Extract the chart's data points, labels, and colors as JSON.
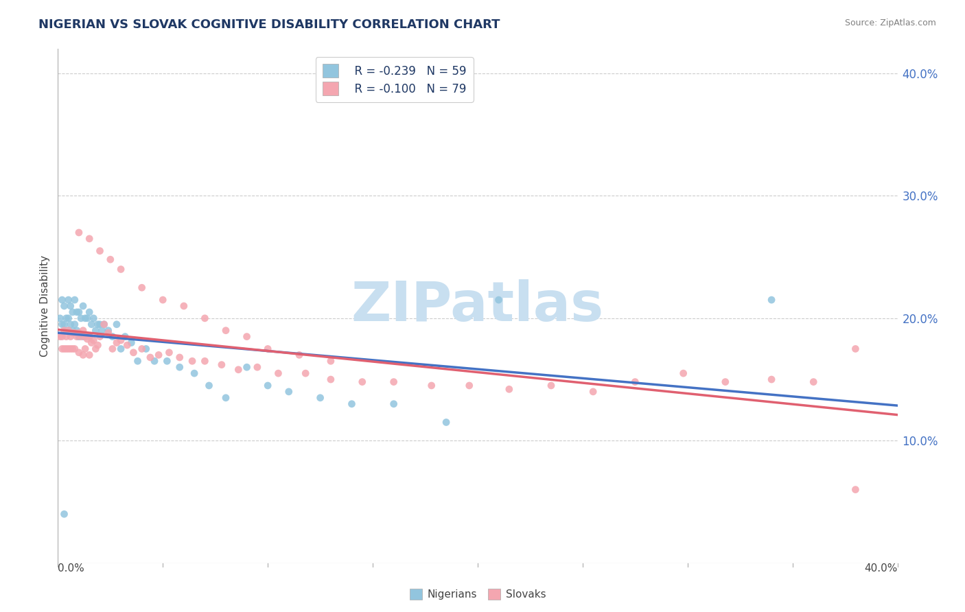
{
  "title": "NIGERIAN VS SLOVAK COGNITIVE DISABILITY CORRELATION CHART",
  "source": "Source: ZipAtlas.com",
  "ylabel": "Cognitive Disability",
  "right_ytick_vals": [
    0.1,
    0.2,
    0.3,
    0.4
  ],
  "xlim": [
    0.0,
    0.4
  ],
  "ylim": [
    0.0,
    0.42
  ],
  "nigerian_color": "#92C5DE",
  "slovak_color": "#F4A6B0",
  "nigerian_line_color": "#4472C4",
  "slovak_line_color": "#E06070",
  "watermark_text": "ZIPatlas",
  "watermark_color": "#C8DFF0",
  "legend_R_nigerian": "R = -0.239",
  "legend_N_nigerian": "N = 59",
  "legend_R_slovak": "R = -0.100",
  "legend_N_slovak": "N = 79",
  "title_color": "#1F3864",
  "source_color": "#808080",
  "axis_label_color": "#444444",
  "ytick_color": "#4472C4",
  "grid_color": "#CCCCCC",
  "legend_text_color": "#1F3864",
  "nigerian_x": [
    0.001,
    0.002,
    0.002,
    0.003,
    0.003,
    0.004,
    0.004,
    0.005,
    0.005,
    0.005,
    0.006,
    0.006,
    0.007,
    0.007,
    0.008,
    0.008,
    0.009,
    0.009,
    0.01,
    0.01,
    0.011,
    0.012,
    0.012,
    0.013,
    0.013,
    0.014,
    0.015,
    0.015,
    0.016,
    0.017,
    0.018,
    0.019,
    0.02,
    0.021,
    0.022,
    0.024,
    0.026,
    0.028,
    0.03,
    0.032,
    0.035,
    0.038,
    0.042,
    0.046,
    0.052,
    0.058,
    0.065,
    0.072,
    0.08,
    0.09,
    0.1,
    0.11,
    0.125,
    0.14,
    0.16,
    0.185,
    0.21,
    0.34,
    0.003
  ],
  "nigerian_y": [
    0.2,
    0.215,
    0.195,
    0.21,
    0.195,
    0.2,
    0.19,
    0.215,
    0.2,
    0.19,
    0.21,
    0.195,
    0.205,
    0.19,
    0.215,
    0.195,
    0.205,
    0.19,
    0.205,
    0.185,
    0.2,
    0.21,
    0.185,
    0.2,
    0.185,
    0.2,
    0.205,
    0.185,
    0.195,
    0.2,
    0.19,
    0.195,
    0.195,
    0.19,
    0.195,
    0.19,
    0.185,
    0.195,
    0.175,
    0.185,
    0.18,
    0.165,
    0.175,
    0.165,
    0.165,
    0.16,
    0.155,
    0.145,
    0.135,
    0.16,
    0.145,
    0.14,
    0.135,
    0.13,
    0.13,
    0.115,
    0.215,
    0.215,
    0.04
  ],
  "slovak_x": [
    0.001,
    0.002,
    0.002,
    0.003,
    0.003,
    0.004,
    0.004,
    0.005,
    0.005,
    0.006,
    0.006,
    0.007,
    0.007,
    0.008,
    0.008,
    0.009,
    0.01,
    0.01,
    0.011,
    0.012,
    0.012,
    0.013,
    0.013,
    0.014,
    0.015,
    0.015,
    0.016,
    0.017,
    0.018,
    0.019,
    0.02,
    0.022,
    0.024,
    0.026,
    0.028,
    0.03,
    0.033,
    0.036,
    0.04,
    0.044,
    0.048,
    0.053,
    0.058,
    0.064,
    0.07,
    0.078,
    0.086,
    0.095,
    0.105,
    0.118,
    0.13,
    0.145,
    0.16,
    0.178,
    0.196,
    0.215,
    0.235,
    0.255,
    0.275,
    0.298,
    0.318,
    0.34,
    0.36,
    0.38,
    0.01,
    0.015,
    0.02,
    0.025,
    0.03,
    0.04,
    0.05,
    0.06,
    0.07,
    0.08,
    0.09,
    0.1,
    0.115,
    0.13,
    0.38
  ],
  "slovak_y": [
    0.185,
    0.185,
    0.175,
    0.19,
    0.175,
    0.185,
    0.175,
    0.19,
    0.175,
    0.185,
    0.175,
    0.188,
    0.175,
    0.188,
    0.175,
    0.185,
    0.188,
    0.172,
    0.185,
    0.19,
    0.17,
    0.185,
    0.175,
    0.183,
    0.185,
    0.17,
    0.18,
    0.182,
    0.175,
    0.178,
    0.185,
    0.195,
    0.188,
    0.175,
    0.18,
    0.182,
    0.178,
    0.172,
    0.175,
    0.168,
    0.17,
    0.172,
    0.168,
    0.165,
    0.165,
    0.162,
    0.158,
    0.16,
    0.155,
    0.155,
    0.15,
    0.148,
    0.148,
    0.145,
    0.145,
    0.142,
    0.145,
    0.14,
    0.148,
    0.155,
    0.148,
    0.15,
    0.148,
    0.175,
    0.27,
    0.265,
    0.255,
    0.248,
    0.24,
    0.225,
    0.215,
    0.21,
    0.2,
    0.19,
    0.185,
    0.175,
    0.17,
    0.165,
    0.06
  ]
}
